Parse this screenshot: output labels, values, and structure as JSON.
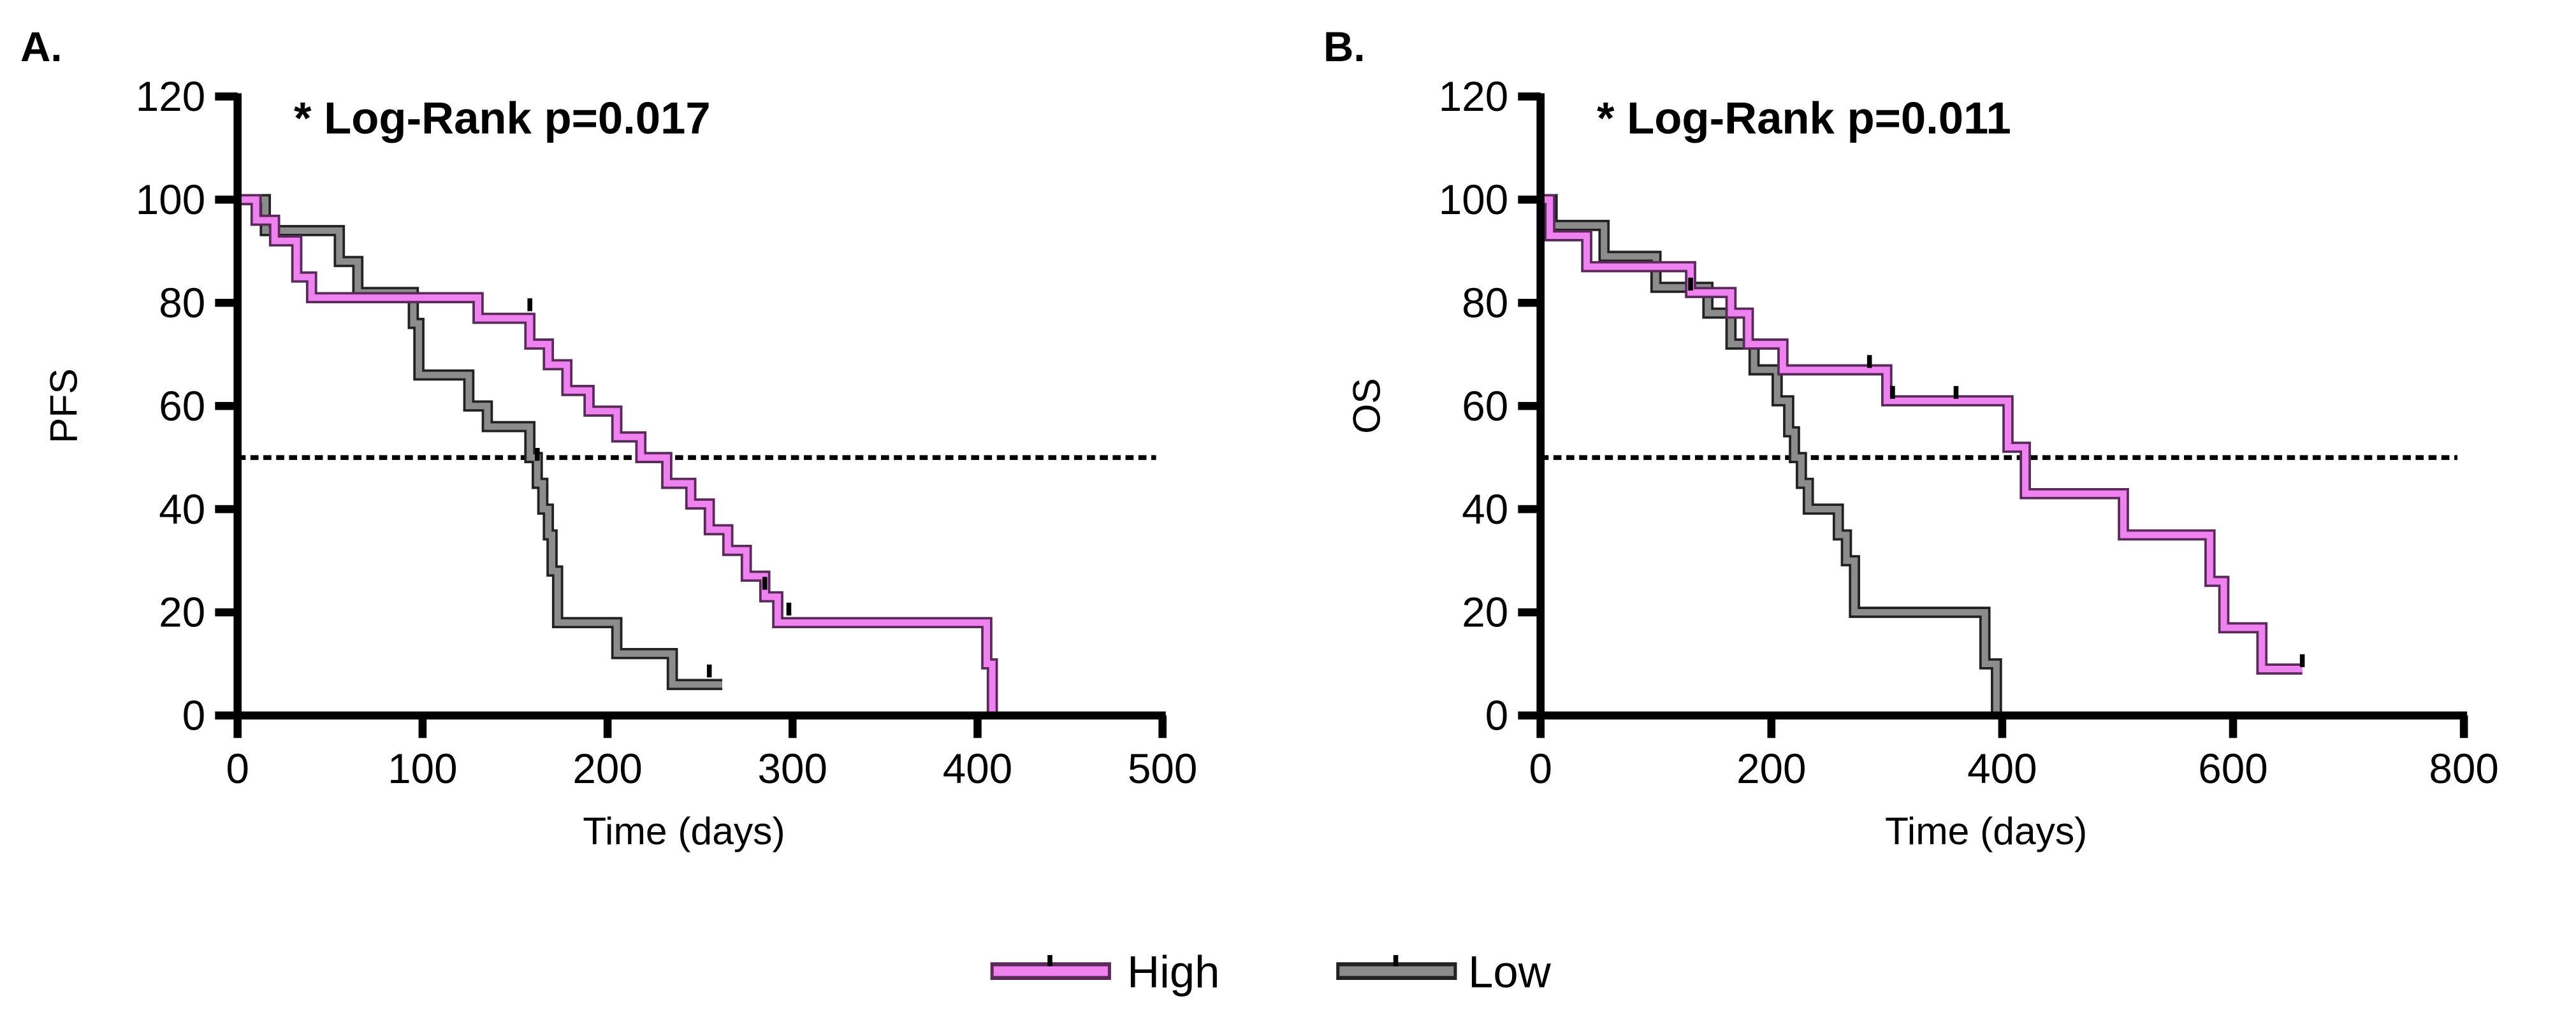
{
  "colors": {
    "high": "#ee82ee",
    "high_edge": "#5a2a5a",
    "low": "#8c8c8c",
    "low_edge": "#222222",
    "axis": "#000000"
  },
  "legend": {
    "high": "High",
    "low": "Low",
    "placement": "bottom-center"
  },
  "chart_data": [
    {
      "type": "line",
      "subtype": "kaplan-meier",
      "panel": "A.",
      "annotation": "* Log-Rank p=0.017",
      "xlabel": "Time (days)",
      "ylabel": "PFS",
      "xlim": [
        0,
        500
      ],
      "ylim": [
        0,
        120
      ],
      "xticks": [
        0,
        100,
        200,
        300,
        400,
        500
      ],
      "yticks": [
        0,
        20,
        40,
        60,
        80,
        100,
        120
      ],
      "reference_line": 50,
      "series": [
        {
          "name": "High",
          "steps": [
            [
              0,
              100
            ],
            [
              10,
              96
            ],
            [
              20,
              92
            ],
            [
              32,
              85
            ],
            [
              40,
              81
            ],
            [
              130,
              77
            ],
            [
              158,
              72
            ],
            [
              168,
              68
            ],
            [
              178,
              63
            ],
            [
              190,
              59
            ],
            [
              205,
              54
            ],
            [
              218,
              50
            ],
            [
              232,
              45
            ],
            [
              245,
              41
            ],
            [
              255,
              36
            ],
            [
              265,
              32
            ],
            [
              275,
              27
            ],
            [
              285,
              23
            ],
            [
              292,
              18
            ],
            [
              405,
              10
            ],
            [
              408,
              0
            ]
          ],
          "censored": [
            [
              158,
              79
            ],
            [
              285,
              25
            ],
            [
              298,
              20
            ]
          ]
        },
        {
          "name": "Low",
          "steps": [
            [
              0,
              100
            ],
            [
              15,
              94
            ],
            [
              55,
              88
            ],
            [
              65,
              82
            ],
            [
              95,
              76
            ],
            [
              98,
              66
            ],
            [
              125,
              60
            ],
            [
              135,
              56
            ],
            [
              158,
              50
            ],
            [
              162,
              45
            ],
            [
              165,
              40
            ],
            [
              168,
              35
            ],
            [
              170,
              28
            ],
            [
              173,
              18
            ],
            [
              205,
              12
            ],
            [
              235,
              6
            ],
            [
              262,
              6
            ]
          ],
          "censored": [
            [
              162,
              50
            ],
            [
              255,
              8
            ]
          ]
        }
      ]
    },
    {
      "type": "line",
      "subtype": "kaplan-meier",
      "panel": "B.",
      "annotation": "* Log-Rank p=0.011",
      "xlabel": "Time (days)",
      "ylabel": "OS",
      "xlim": [
        0,
        800
      ],
      "ylim": [
        0,
        120
      ],
      "xticks": [
        0,
        200,
        400,
        600,
        800
      ],
      "yticks": [
        0,
        20,
        40,
        60,
        80,
        100,
        120
      ],
      "reference_line": 50,
      "series": [
        {
          "name": "High",
          "steps": [
            [
              0,
              100
            ],
            [
              8,
              93
            ],
            [
              40,
              87
            ],
            [
              130,
              82
            ],
            [
              165,
              78
            ],
            [
              180,
              72
            ],
            [
              210,
              67
            ],
            [
              300,
              61
            ],
            [
              405,
              52
            ],
            [
              420,
              43
            ],
            [
              505,
              35
            ],
            [
              580,
              26
            ],
            [
              592,
              17
            ],
            [
              625,
              9
            ],
            [
              660,
              9
            ]
          ],
          "censored": [
            [
              130,
              83
            ],
            [
              285,
              68
            ],
            [
              305,
              62
            ],
            [
              360,
              62
            ],
            [
              660,
              10
            ]
          ]
        },
        {
          "name": "Low",
          "steps": [
            [
              0,
              100
            ],
            [
              10,
              95
            ],
            [
              55,
              89
            ],
            [
              100,
              83
            ],
            [
              145,
              78
            ],
            [
              165,
              72
            ],
            [
              185,
              67
            ],
            [
              205,
              61
            ],
            [
              215,
              55
            ],
            [
              220,
              50
            ],
            [
              226,
              45
            ],
            [
              232,
              40
            ],
            [
              258,
              35
            ],
            [
              265,
              30
            ],
            [
              272,
              20
            ],
            [
              385,
              10
            ],
            [
              395,
              0
            ]
          ],
          "censored": []
        }
      ]
    }
  ]
}
